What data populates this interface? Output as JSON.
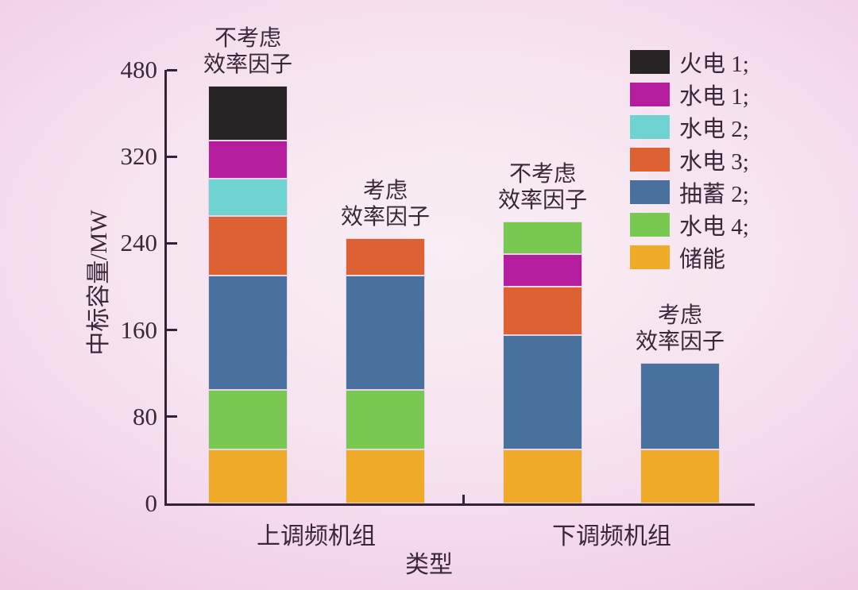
{
  "style": {
    "background_center": "#f9eef5",
    "background_edge": "#ebbedd",
    "text_color": "#3a2839",
    "axis_color": "#322336",
    "segment_border": "#e9d4e6"
  },
  "chart_data": {
    "type": "bar",
    "stacked": true,
    "xlabel": "类型",
    "ylabel": "中标容量/MW",
    "unit": "MW",
    "y_tick_labels": [
      "0",
      "80",
      "160",
      "240",
      "320",
      "480"
    ],
    "axis_note": "y ticks equally spaced in the original figure, top interval labeled 480",
    "grid": false,
    "legend_position": "top-right",
    "categories": [
      "上调频机组",
      "下调频机组"
    ],
    "legend": [
      {
        "label": "火电 1;",
        "series": "火电 1",
        "color": "#282324"
      },
      {
        "label": "水电 1;",
        "series": "水电 1",
        "color": "#b31d9e"
      },
      {
        "label": "水电 2;",
        "series": "水电 2",
        "color": "#6fd3d2"
      },
      {
        "label": "水电 3;",
        "series": "水电 3",
        "color": "#de6133"
      },
      {
        "label": "抽蓄 2;",
        "series": "抽蓄 2",
        "color": "#48719d"
      },
      {
        "label": "水电 4;",
        "series": "水电 4",
        "color": "#79c851"
      },
      {
        "label": "储能",
        "series": "储能",
        "color": "#efaa28"
      }
    ],
    "colors": {
      "火电 1": "#282324",
      "水电 1": "#b31d9e",
      "水电 2": "#6fd3d2",
      "水电 3": "#de6133",
      "抽蓄 2": "#48719d",
      "水电 4": "#79c851",
      "储能": "#efaa28"
    },
    "bars": [
      {
        "category": "上调频机组",
        "annotation_lines": [
          "不考虑",
          "效率因子"
        ],
        "total": 385,
        "segments": [
          {
            "name": "储能",
            "value": 50
          },
          {
            "name": "水电 4",
            "value": 55
          },
          {
            "name": "抽蓄 2",
            "value": 105
          },
          {
            "name": "水电 3",
            "value": 55
          },
          {
            "name": "水电 2",
            "value": 35
          },
          {
            "name": "水电 1",
            "value": 35
          },
          {
            "name": "火电 1",
            "value": 50
          }
        ]
      },
      {
        "category": "上调频机组",
        "annotation_lines": [
          "考虑",
          "效率因子"
        ],
        "total": 245,
        "segments": [
          {
            "name": "储能",
            "value": 50
          },
          {
            "name": "水电 4",
            "value": 55
          },
          {
            "name": "抽蓄 2",
            "value": 105
          },
          {
            "name": "水电 3",
            "value": 35
          }
        ]
      },
      {
        "category": "下调频机组",
        "annotation_lines": [
          "不考虑",
          "效率因子"
        ],
        "total": 260,
        "segments": [
          {
            "name": "储能",
            "value": 50
          },
          {
            "name": "抽蓄 2",
            "value": 105
          },
          {
            "name": "水电 3",
            "value": 45
          },
          {
            "name": "水电 1",
            "value": 30
          },
          {
            "name": "水电 4",
            "value": 30
          }
        ]
      },
      {
        "category": "下调频机组",
        "annotation_lines": [
          "考虑",
          "效率因子"
        ],
        "total": 130,
        "segments": [
          {
            "name": "储能",
            "value": 50
          },
          {
            "name": "抽蓄 2",
            "value": 80
          }
        ]
      }
    ]
  }
}
